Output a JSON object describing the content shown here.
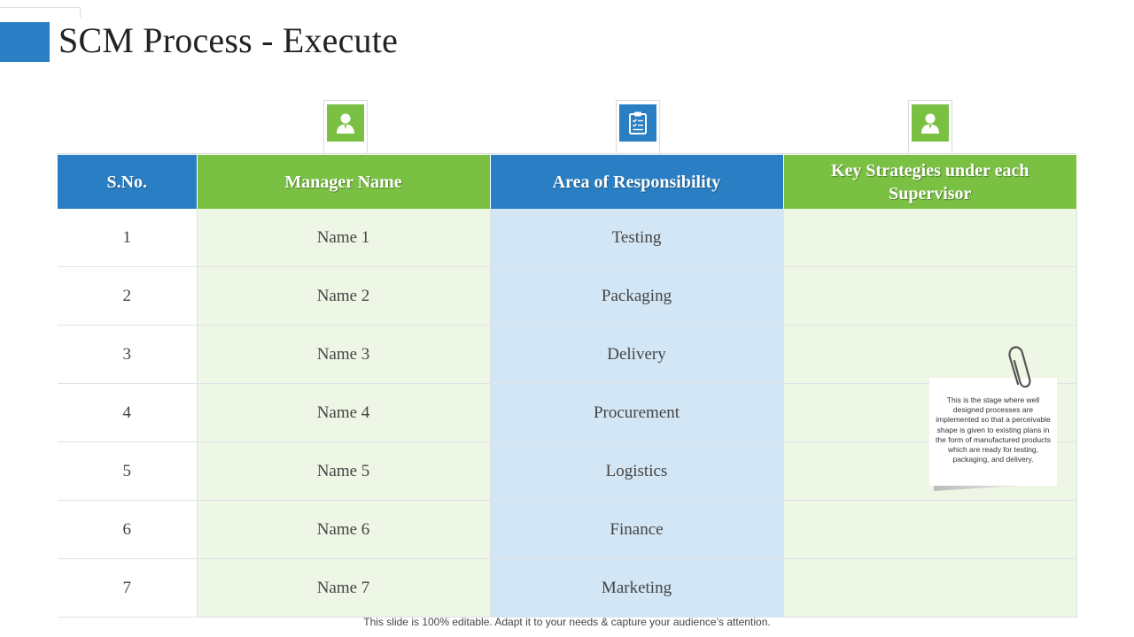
{
  "title": "SCM Process - Execute",
  "icons": [
    {
      "name": "user-icon",
      "color": "#7ac143"
    },
    {
      "name": "clipboard-icon",
      "color": "#2a7fc4"
    },
    {
      "name": "user-icon",
      "color": "#7ac143"
    }
  ],
  "table": {
    "headers": [
      "S.No.",
      "Manager Name",
      "Area of Responsibility",
      "Key Strategies under each Supervisor"
    ],
    "rows": [
      {
        "sno": "1",
        "manager": "Name 1",
        "area": "Testing",
        "strategy": ""
      },
      {
        "sno": "2",
        "manager": "Name 2",
        "area": "Packaging",
        "strategy": ""
      },
      {
        "sno": "3",
        "manager": "Name 3",
        "area": "Delivery",
        "strategy": ""
      },
      {
        "sno": "4",
        "manager": "Name 4",
        "area": "Procurement",
        "strategy": ""
      },
      {
        "sno": "5",
        "manager": "Name 5",
        "area": "Logistics",
        "strategy": ""
      },
      {
        "sno": "6",
        "manager": "Name 6",
        "area": "Finance",
        "strategy": ""
      },
      {
        "sno": "7",
        "manager": "Name 7",
        "area": "Marketing",
        "strategy": ""
      }
    ]
  },
  "note": {
    "icon": "paperclip-icon",
    "text": "This is the stage where well designed processes are implemented so that a perceivable shape is given to existing plans in the form of manufactured products which are ready for testing, packaging, and delivery."
  },
  "footer": "This slide is 100% editable. Adapt it to your needs & capture your audience’s attention.",
  "colors": {
    "blue": "#2a7fc4",
    "green": "#7ac143",
    "light_green": "#eef6e5",
    "light_blue": "#d3e6f5"
  }
}
